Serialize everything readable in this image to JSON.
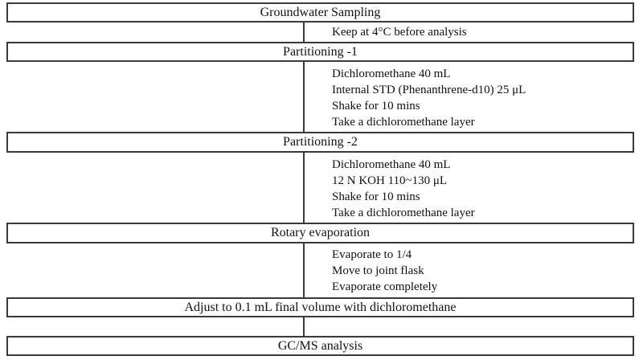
{
  "diagram": {
    "type": "flowchart",
    "title": "Groundwater sampling GC/MS analysis procedure",
    "colors": {
      "background": "#ffffff",
      "line": "#3a3a3a",
      "text": "#111111"
    },
    "boxes": [
      {
        "label": "Groundwater Sampling"
      },
      {
        "label": "Partitioning -1"
      },
      {
        "label": "Partitioning -2"
      },
      {
        "label": "Rotary evaporation"
      },
      {
        "label": "Adjust to 0.1 mL final volume with dichloromethane"
      },
      {
        "label": "GC/MS analysis"
      }
    ],
    "annotations": [
      {
        "lines": [
          "Keep at 4°C before analysis"
        ]
      },
      {
        "lines": [
          "Dichloromethane 40 mL",
          "Internal STD (Phenanthrene-d10) 25 μL",
          "Shake for 10 mins",
          "Take a dichloromethane layer"
        ]
      },
      {
        "lines": [
          "Dichloromethane 40 mL",
          "12 N KOH 110~130 μL",
          "Shake for 10 mins",
          "Take a dichloromethane layer"
        ]
      },
      {
        "lines": [
          "Evaporate to 1/4",
          "Move to joint flask",
          "Evaporate completely"
        ]
      },
      {
        "lines": []
      }
    ]
  }
}
